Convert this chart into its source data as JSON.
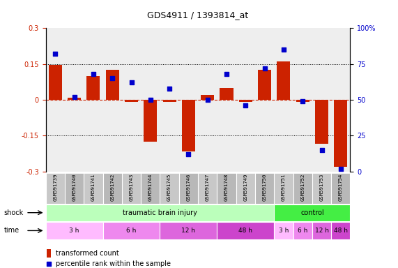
{
  "title": "GDS4911 / 1393814_at",
  "samples": [
    "GSM591739",
    "GSM591740",
    "GSM591741",
    "GSM591742",
    "GSM591743",
    "GSM591744",
    "GSM591745",
    "GSM591746",
    "GSM591747",
    "GSM591748",
    "GSM591749",
    "GSM591750",
    "GSM591751",
    "GSM591752",
    "GSM591753",
    "GSM591754"
  ],
  "bar_values": [
    0.145,
    0.01,
    0.1,
    0.125,
    -0.01,
    -0.175,
    -0.01,
    -0.215,
    0.02,
    0.05,
    -0.01,
    0.125,
    0.16,
    -0.01,
    -0.185,
    -0.28
  ],
  "dot_values": [
    82,
    52,
    68,
    65,
    62,
    50,
    58,
    12,
    50,
    68,
    46,
    72,
    85,
    49,
    15,
    2
  ],
  "ylim_left": [
    -0.3,
    0.3
  ],
  "ylim_right": [
    0,
    100
  ],
  "yticks_left": [
    -0.3,
    -0.15,
    0.0,
    0.15,
    0.3
  ],
  "yticks_right": [
    0,
    25,
    50,
    75,
    100
  ],
  "bar_color": "#cc2200",
  "dot_color": "#0000cc",
  "zero_line_color": "#cc2200",
  "bg_color": "#ffffff",
  "plot_bg": "#eeeeee",
  "shock_row": [
    {
      "label": "traumatic brain injury",
      "start": 0,
      "end": 12,
      "color": "#bbffbb"
    },
    {
      "label": "control",
      "start": 12,
      "end": 16,
      "color": "#44ee44"
    }
  ],
  "time_row": [
    {
      "label": "3 h",
      "start": 0,
      "end": 3,
      "color": "#ffbbff"
    },
    {
      "label": "6 h",
      "start": 3,
      "end": 6,
      "color": "#ee88ee"
    },
    {
      "label": "12 h",
      "start": 6,
      "end": 9,
      "color": "#dd66dd"
    },
    {
      "label": "48 h",
      "start": 9,
      "end": 12,
      "color": "#cc44cc"
    },
    {
      "label": "3 h",
      "start": 12,
      "end": 13,
      "color": "#ffbbff"
    },
    {
      "label": "6 h",
      "start": 13,
      "end": 14,
      "color": "#ee88ee"
    },
    {
      "label": "12 h",
      "start": 14,
      "end": 15,
      "color": "#dd66dd"
    },
    {
      "label": "48 h",
      "start": 15,
      "end": 16,
      "color": "#cc44cc"
    }
  ],
  "shock_label": "shock",
  "time_label": "time",
  "legend_bar_label": "transformed count",
  "legend_dot_label": "percentile rank within the sample"
}
